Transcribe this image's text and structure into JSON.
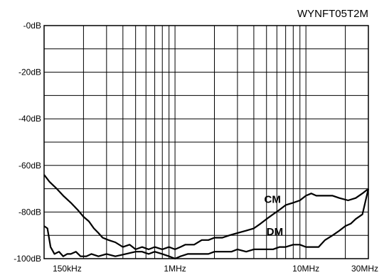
{
  "chart_data": {
    "type": "line",
    "title": "WYNFT05T2M",
    "xlabel": "",
    "ylabel": "",
    "x_scale": "log",
    "xlim_hz": [
      100000,
      30000000
    ],
    "ylim_db": [
      -100,
      0
    ],
    "grid": true,
    "x_ticks": [
      {
        "label": "150kHz",
        "value": 150000
      },
      {
        "label": "1MHz",
        "value": 1000000
      },
      {
        "label": "10MHz",
        "value": 10000000
      },
      {
        "label": "30MHz",
        "value": 30000000
      }
    ],
    "y_ticks": [
      {
        "label": "-0dB",
        "value": 0
      },
      {
        "label": "-20dB",
        "value": -20
      },
      {
        "label": "-40dB",
        "value": -40
      },
      {
        "label": "-60dB",
        "value": -60
      },
      {
        "label": "-80dB",
        "value": -80
      },
      {
        "label": "-100dB",
        "value": -100
      }
    ],
    "series": [
      {
        "name": "CM",
        "color": "#000000",
        "points": [
          [
            100000,
            -64
          ],
          [
            110000,
            -67
          ],
          [
            125000,
            -70
          ],
          [
            140000,
            -73
          ],
          [
            160000,
            -76
          ],
          [
            180000,
            -79
          ],
          [
            200000,
            -82
          ],
          [
            220000,
            -84
          ],
          [
            240000,
            -87
          ],
          [
            260000,
            -89
          ],
          [
            280000,
            -91
          ],
          [
            310000,
            -92
          ],
          [
            350000,
            -93
          ],
          [
            400000,
            -95
          ],
          [
            450000,
            -94
          ],
          [
            500000,
            -96
          ],
          [
            560000,
            -95
          ],
          [
            630000,
            -96
          ],
          [
            700000,
            -95
          ],
          [
            800000,
            -96
          ],
          [
            900000,
            -95
          ],
          [
            1000000,
            -96
          ],
          [
            1100000,
            -95
          ],
          [
            1200000,
            -94
          ],
          [
            1400000,
            -94
          ],
          [
            1600000,
            -92
          ],
          [
            1800000,
            -92
          ],
          [
            2000000,
            -91
          ],
          [
            2300000,
            -91
          ],
          [
            2600000,
            -90
          ],
          [
            3000000,
            -89
          ],
          [
            3500000,
            -88
          ],
          [
            4000000,
            -87
          ],
          [
            4500000,
            -85
          ],
          [
            5000000,
            -83
          ],
          [
            5600000,
            -81
          ],
          [
            6300000,
            -79
          ],
          [
            7000000,
            -77
          ],
          [
            8000000,
            -76
          ],
          [
            9000000,
            -75
          ],
          [
            10000000,
            -73
          ],
          [
            11000000,
            -72
          ],
          [
            12000000,
            -73
          ],
          [
            14000000,
            -73
          ],
          [
            16000000,
            -73
          ],
          [
            18000000,
            -74
          ],
          [
            21000000,
            -75
          ],
          [
            24000000,
            -74
          ],
          [
            27000000,
            -72
          ],
          [
            30000000,
            -70
          ]
        ]
      },
      {
        "name": "DM",
        "color": "#000000",
        "points": [
          [
            100000,
            -86
          ],
          [
            106000,
            -87
          ],
          [
            112000,
            -95
          ],
          [
            120000,
            -98
          ],
          [
            130000,
            -97
          ],
          [
            140000,
            -99
          ],
          [
            150000,
            -98
          ],
          [
            160000,
            -98
          ],
          [
            175000,
            -97
          ],
          [
            190000,
            -99
          ],
          [
            210000,
            -99
          ],
          [
            230000,
            -98
          ],
          [
            260000,
            -99
          ],
          [
            300000,
            -98
          ],
          [
            350000,
            -99
          ],
          [
            420000,
            -98
          ],
          [
            500000,
            -97
          ],
          [
            560000,
            -97
          ],
          [
            630000,
            -98
          ],
          [
            700000,
            -97
          ],
          [
            800000,
            -98
          ],
          [
            900000,
            -99
          ],
          [
            1000000,
            -100
          ],
          [
            1100000,
            -99
          ],
          [
            1250000,
            -98
          ],
          [
            1400000,
            -98
          ],
          [
            1600000,
            -98
          ],
          [
            1800000,
            -98
          ],
          [
            2000000,
            -97
          ],
          [
            2300000,
            -97
          ],
          [
            2700000,
            -97
          ],
          [
            3000000,
            -96
          ],
          [
            3500000,
            -97
          ],
          [
            4000000,
            -96
          ],
          [
            4500000,
            -96
          ],
          [
            5000000,
            -96
          ],
          [
            5600000,
            -96
          ],
          [
            6300000,
            -95
          ],
          [
            7000000,
            -95
          ],
          [
            8000000,
            -94
          ],
          [
            9000000,
            -94
          ],
          [
            10000000,
            -95
          ],
          [
            11000000,
            -95
          ],
          [
            12500000,
            -95
          ],
          [
            14000000,
            -92
          ],
          [
            16000000,
            -90
          ],
          [
            18000000,
            -88
          ],
          [
            20000000,
            -86
          ],
          [
            22000000,
            -85
          ],
          [
            24000000,
            -83
          ],
          [
            27000000,
            -81
          ],
          [
            30000000,
            -70
          ]
        ]
      }
    ]
  }
}
